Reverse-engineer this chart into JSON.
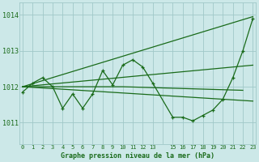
{
  "background_color": "#cce8e8",
  "grid_color": "#a0c8c8",
  "line_color": "#1a6b1a",
  "marker_color": "#1a6b1a",
  "title": "Graphe pression niveau de la mer (hPa)",
  "ylim": [
    1010.4,
    1014.35
  ],
  "yticks": [
    1011,
    1012,
    1013,
    1014
  ],
  "xlim": [
    -0.3,
    23.3
  ],
  "xtick_labels": [
    "0",
    "1",
    "2",
    "3",
    "4",
    "5",
    "6",
    "7",
    "8",
    "9",
    "10",
    "11",
    "12",
    "13",
    "",
    "15",
    "16",
    "17",
    "18",
    "19",
    "20",
    "21",
    "22",
    "23"
  ],
  "series_main": {
    "x": [
      0,
      1,
      2,
      3,
      4,
      5,
      6,
      7,
      8,
      9,
      10,
      11,
      12,
      13,
      15,
      16,
      17,
      18,
      19,
      20,
      21,
      22,
      23
    ],
    "y": [
      1011.85,
      1012.1,
      1012.25,
      1012.0,
      1011.4,
      1011.8,
      1011.4,
      1011.8,
      1012.45,
      1012.05,
      1012.6,
      1012.75,
      1012.55,
      1012.1,
      1011.15,
      1011.15,
      1011.05,
      1011.2,
      1011.35,
      1011.65,
      1012.25,
      1013.0,
      1013.9
    ]
  },
  "trend_up": {
    "x": [
      0,
      23
    ],
    "y": [
      1012.0,
      1013.95
    ]
  },
  "trend_flat1": {
    "x": [
      0,
      23
    ],
    "y": [
      1012.0,
      1012.6
    ]
  },
  "trend_down": {
    "x": [
      0,
      23
    ],
    "y": [
      1012.0,
      1011.6
    ]
  },
  "trend_extra": {
    "x": [
      0,
      10,
      22
    ],
    "y": [
      1012.0,
      1012.0,
      1011.9
    ]
  }
}
